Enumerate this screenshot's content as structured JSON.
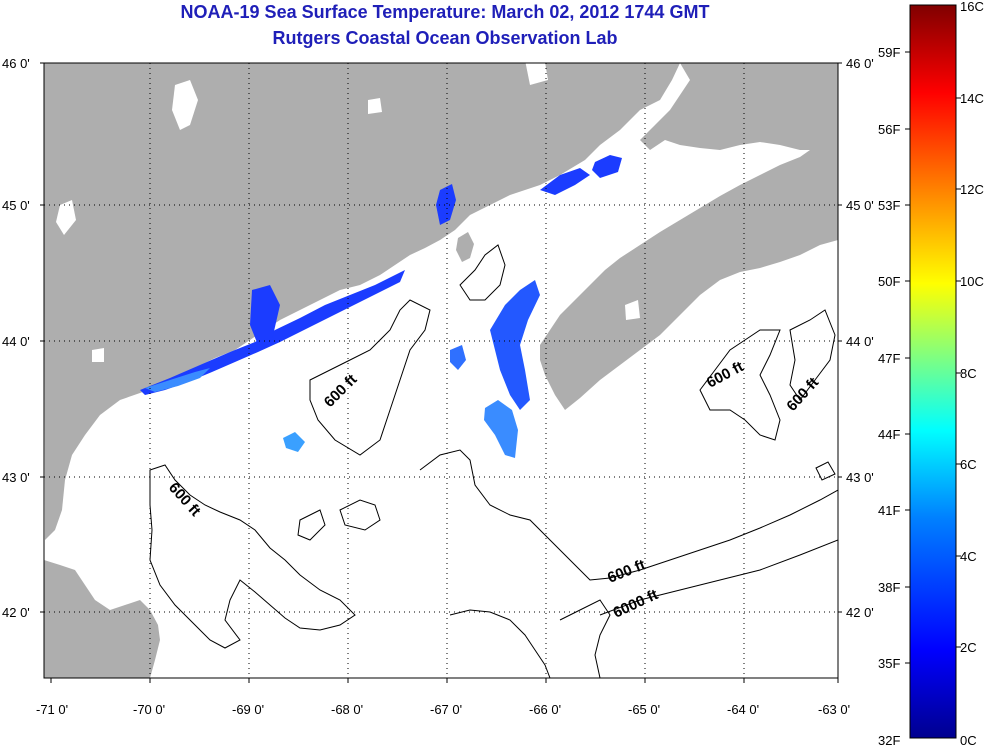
{
  "title_line1": "NOAA-19 Sea Surface Temperature:  March 02, 2012 1744 GMT",
  "title_line2": "Rutgers Coastal Ocean Observation Lab",
  "colors": {
    "land": "#aeaeae",
    "water": "#ffffff",
    "sst_cold": "#1b3cff",
    "sst_mid": "#2f8cff",
    "contour": "#000000"
  },
  "longitude_labels": [
    "-71 0'",
    "-70 0'",
    "-69 0'",
    "-68 0'",
    "-67 0'",
    "-66 0'",
    "-65 0'",
    "-64 0'",
    "-63 0'"
  ],
  "latitude_labels": [
    "46 0'",
    "45 0'",
    "44 0'",
    "43 0'",
    "42 0'"
  ],
  "contour_labels": [
    "600 ft",
    "600 ft",
    "600 ft",
    "600 ft",
    "600 ft",
    "6000 ft"
  ],
  "colorbar": {
    "celsius_labels": [
      "16C",
      "14C",
      "12C",
      "10C",
      "8C",
      "6C",
      "4C",
      "2C",
      "0C"
    ],
    "fahrenheit_labels": [
      "59F",
      "56F",
      "53F",
      "50F",
      "47F",
      "44F",
      "41F",
      "38F",
      "35F",
      "32F"
    ],
    "gradient": [
      "#00008f",
      "#0000ff",
      "#0080ff",
      "#00ffff",
      "#80ff80",
      "#ffff00",
      "#ff8000",
      "#ff0000",
      "#800000"
    ]
  }
}
